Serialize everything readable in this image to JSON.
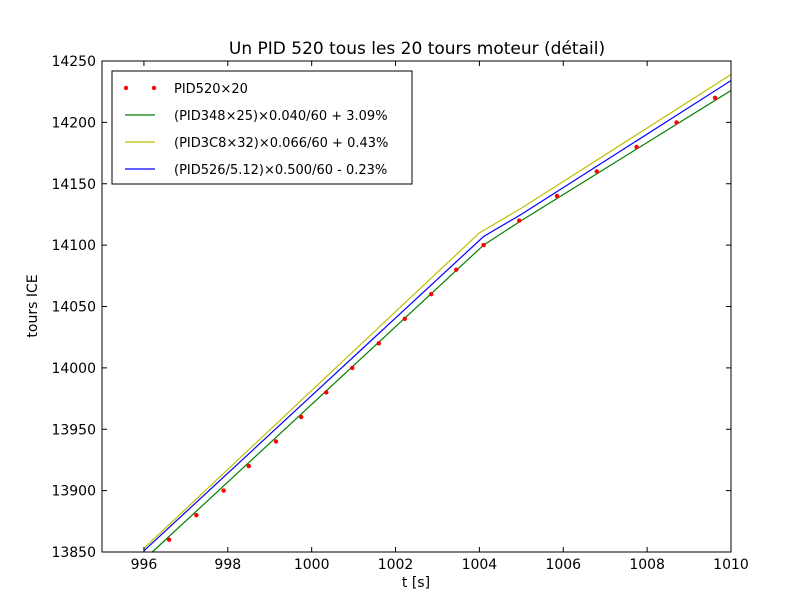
{
  "chart_data": {
    "type": "line",
    "title": "Un PID 520 tous les 20 tours moteur (détail)",
    "xlabel": "t [s]",
    "ylabel": "tours ICE",
    "xlim": [
      995,
      1010
    ],
    "ylim": [
      13850,
      14250
    ],
    "xticks": [
      996,
      998,
      1000,
      1002,
      1004,
      1006,
      1008,
      1010
    ],
    "yticks": [
      13850,
      13900,
      13950,
      14000,
      14050,
      14100,
      14150,
      14200,
      14250
    ],
    "grid": false,
    "legend_position": "top-left",
    "series": [
      {
        "name": "PID520×20",
        "style": "dots",
        "color": "#ff0000",
        "points": [
          [
            996.6,
            13860
          ],
          [
            997.25,
            13880
          ],
          [
            997.9,
            13900
          ],
          [
            998.5,
            13920
          ],
          [
            999.15,
            13940
          ],
          [
            999.75,
            13960
          ],
          [
            1000.35,
            13980
          ],
          [
            1000.97,
            14000
          ],
          [
            1001.6,
            14020
          ],
          [
            1002.22,
            14040
          ],
          [
            1002.85,
            14060
          ],
          [
            1003.45,
            14080
          ],
          [
            1004.1,
            14100
          ],
          [
            1004.95,
            14120
          ],
          [
            1005.85,
            14140
          ],
          [
            1006.8,
            14160
          ],
          [
            1007.75,
            14180
          ],
          [
            1008.7,
            14200
          ],
          [
            1009.62,
            14220
          ]
        ]
      },
      {
        "name": "(PID348×25)×0.040/60 + 3.09%",
        "style": "line",
        "color": "#008000",
        "points": [
          [
            996.2,
            13850
          ],
          [
            1004.1,
            14100
          ],
          [
            1005.0,
            14120
          ],
          [
            1010.0,
            14226
          ]
        ]
      },
      {
        "name": "(PID3C8×32)×0.066/60 + 0.43%",
        "style": "line",
        "color": "#bfbf00",
        "points": [
          [
            996.0,
            13853
          ],
          [
            1004.0,
            14110
          ],
          [
            1005.0,
            14130
          ],
          [
            1010.0,
            14239
          ]
        ]
      },
      {
        "name": "(PID526/5.12)×0.500/60 - 0.23%",
        "style": "line",
        "color": "#0000ff",
        "points": [
          [
            996.0,
            13851
          ],
          [
            1004.1,
            14107
          ],
          [
            1005.0,
            14125
          ],
          [
            1010.0,
            14234
          ]
        ]
      }
    ]
  }
}
